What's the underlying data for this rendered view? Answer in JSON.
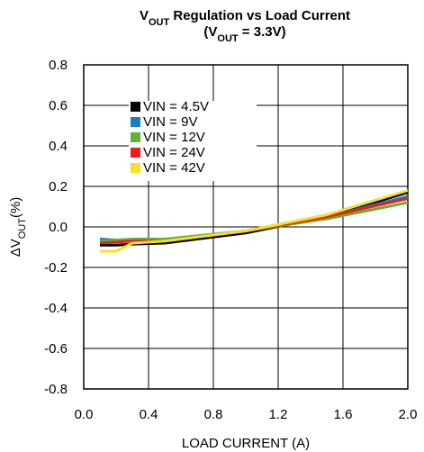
{
  "chart_data": {
    "type": "line",
    "title_lines": [
      [
        "V",
        "OUT",
        " Regulation vs Load Current"
      ],
      [
        "(V",
        "OUT",
        " = 3.3V)"
      ]
    ],
    "x_label": "LOAD CURRENT (A)",
    "y_label": [
      "ΔV",
      "OUT",
      "(%)"
    ],
    "x": [
      0.1,
      0.2,
      0.3,
      0.5,
      1.0,
      1.5,
      2.0
    ],
    "series": [
      {
        "name": "VIN = 4.5V",
        "color": "#000000",
        "values": [
          -0.09,
          -0.09,
          -0.085,
          -0.08,
          -0.03,
          0.05,
          0.17
        ]
      },
      {
        "name": "VIN = 9V",
        "color": "#1a7fbf",
        "values": [
          -0.06,
          -0.065,
          -0.07,
          -0.07,
          -0.02,
          0.05,
          0.15
        ]
      },
      {
        "name": "VIN = 12V",
        "color": "#5fb52f",
        "values": [
          -0.07,
          -0.065,
          -0.06,
          -0.06,
          -0.02,
          0.04,
          0.12
        ]
      },
      {
        "name": "VIN = 24V",
        "color": "#ee1c1c",
        "values": [
          -0.08,
          -0.075,
          -0.07,
          -0.07,
          -0.02,
          0.05,
          0.14
        ]
      },
      {
        "name": "VIN = 42V",
        "color": "#f7e125",
        "values": [
          -0.12,
          -0.12,
          -0.08,
          -0.07,
          -0.02,
          0.06,
          0.18
        ]
      }
    ],
    "xlim": [
      0,
      2
    ],
    "xticks": [
      {
        "value": 0,
        "label": "0.0"
      },
      0.4,
      0.8,
      1.2,
      1.6,
      {
        "value": 2,
        "label": "2.0"
      }
    ],
    "ylim": [
      -0.8,
      0.8
    ],
    "yticks": [
      -0.8,
      -0.6,
      -0.4,
      -0.2,
      {
        "value": 0,
        "label": "0.0"
      },
      0.2,
      0.4,
      0.6,
      0.8
    ],
    "grid": true,
    "legend": "upper left"
  }
}
